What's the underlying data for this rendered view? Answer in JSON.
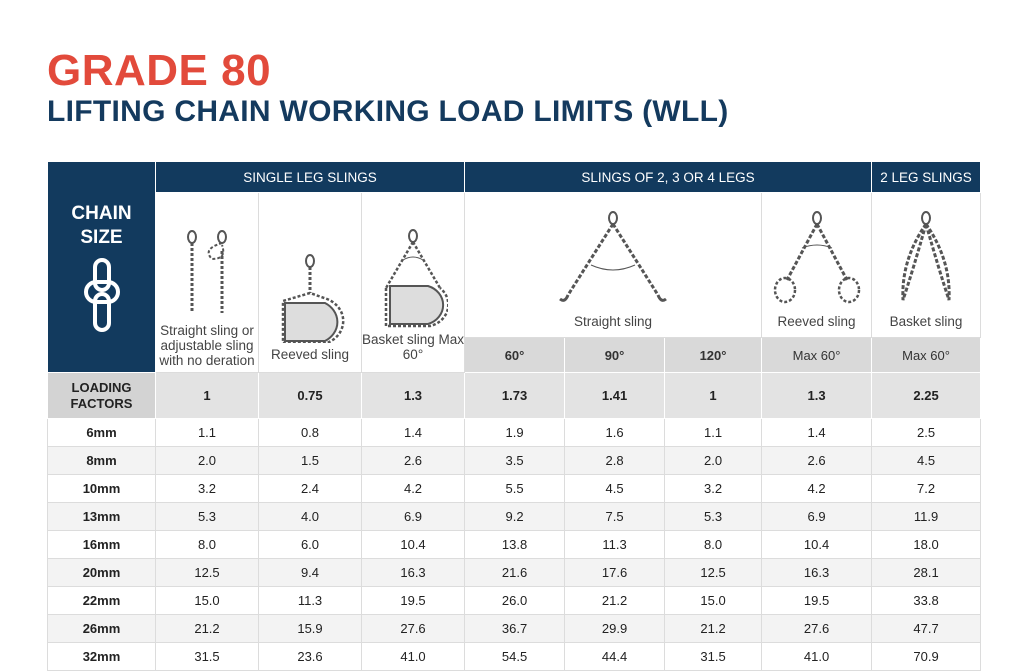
{
  "header": {
    "title": "GRADE 80",
    "subtitle": "LIFTING CHAIN WORKING LOAD LIMITS (WLL)"
  },
  "table": {
    "chain_size_header": "CHAIN SIZE",
    "groups": [
      "SINGLE LEG SLINGS",
      "SLINGS OF 2, 3 OR 4 LEGS",
      "2 LEG SLINGS"
    ],
    "sling_types": [
      "Straight sling or adjustable sling with no deration",
      "Reeved sling",
      "Basket sling Max 60°",
      "Straight sling",
      "Reeved sling",
      "Basket sling"
    ],
    "angles": [
      "60°",
      "90°",
      "120°",
      "Max 60°",
      "Max 60°"
    ],
    "loading_factors_label": "LOADING FACTORS",
    "loading_factors": [
      "1",
      "0.75",
      "1.3",
      "1.73",
      "1.41",
      "1",
      "1.3",
      "2.25"
    ],
    "rows": [
      [
        "6mm",
        "1.1",
        "0.8",
        "1.4",
        "1.9",
        "1.6",
        "1.1",
        "1.4",
        "2.5"
      ],
      [
        "8mm",
        "2.0",
        "1.5",
        "2.6",
        "3.5",
        "2.8",
        "2.0",
        "2.6",
        "4.5"
      ],
      [
        "10mm",
        "3.2",
        "2.4",
        "4.2",
        "5.5",
        "4.5",
        "3.2",
        "4.2",
        "7.2"
      ],
      [
        "13mm",
        "5.3",
        "4.0",
        "6.9",
        "9.2",
        "7.5",
        "5.3",
        "6.9",
        "11.9"
      ],
      [
        "16mm",
        "8.0",
        "6.0",
        "10.4",
        "13.8",
        "11.3",
        "8.0",
        "10.4",
        "18.0"
      ],
      [
        "20mm",
        "12.5",
        "9.4",
        "16.3",
        "21.6",
        "17.6",
        "12.5",
        "16.3",
        "28.1"
      ],
      [
        "22mm",
        "15.0",
        "11.3",
        "19.5",
        "26.0",
        "21.2",
        "15.0",
        "19.5",
        "33.8"
      ],
      [
        "26mm",
        "21.2",
        "15.9",
        "27.6",
        "36.7",
        "29.9",
        "21.2",
        "27.6",
        "47.7"
      ],
      [
        "32mm",
        "31.5",
        "23.6",
        "41.0",
        "54.5",
        "44.4",
        "31.5",
        "41.0",
        "70.9"
      ]
    ]
  }
}
